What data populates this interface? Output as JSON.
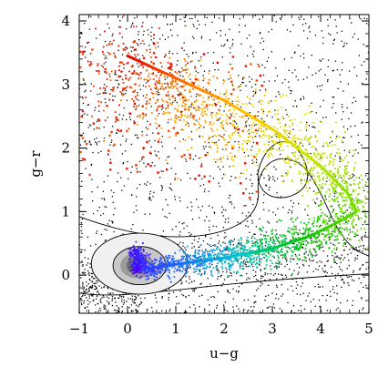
{
  "chart_data": {
    "type": "scatter",
    "title": "",
    "xlabel": "u−g",
    "ylabel": "g−r",
    "xlim": [
      -1,
      5
    ],
    "ylim": [
      -0.6,
      4.1
    ],
    "x_ticks": [
      -1,
      0,
      1,
      2,
      3,
      4,
      5
    ],
    "x_tick_labels": [
      "−1",
      "0",
      "1",
      "2",
      "3",
      "4",
      "5"
    ],
    "y_ticks": [
      0,
      1,
      2,
      3,
      4
    ],
    "y_tick_labels": [
      "0",
      "1",
      "2",
      "3",
      "4"
    ],
    "grid": false,
    "legend": "none",
    "gradient_colors": [
      "#4b00ff",
      "#1e64ff",
      "#00c8c8",
      "#00c800",
      "#78dc00",
      "#d2e600",
      "#ffc800",
      "#ff7800",
      "#e60000"
    ],
    "background_point_color": "#000000",
    "contour_color": "#000000",
    "density_core_color": "#6e6e6e",
    "track": [
      {
        "x": 0.18,
        "y": 0.05
      },
      {
        "x": 0.25,
        "y": 0.25
      },
      {
        "x": 0.15,
        "y": 0.38
      },
      {
        "x": 0.4,
        "y": 0.1
      },
      {
        "x": 1.0,
        "y": 0.17
      },
      {
        "x": 2.0,
        "y": 0.27
      },
      {
        "x": 3.0,
        "y": 0.42
      },
      {
        "x": 3.8,
        "y": 0.62
      },
      {
        "x": 4.4,
        "y": 0.85
      },
      {
        "x": 4.75,
        "y": 1.0
      },
      {
        "x": 4.55,
        "y": 1.3
      },
      {
        "x": 4.0,
        "y": 1.72
      },
      {
        "x": 3.0,
        "y": 2.3
      },
      {
        "x": 2.0,
        "y": 2.75
      },
      {
        "x": 1.0,
        "y": 3.1
      },
      {
        "x": 0.0,
        "y": 3.45
      }
    ]
  }
}
